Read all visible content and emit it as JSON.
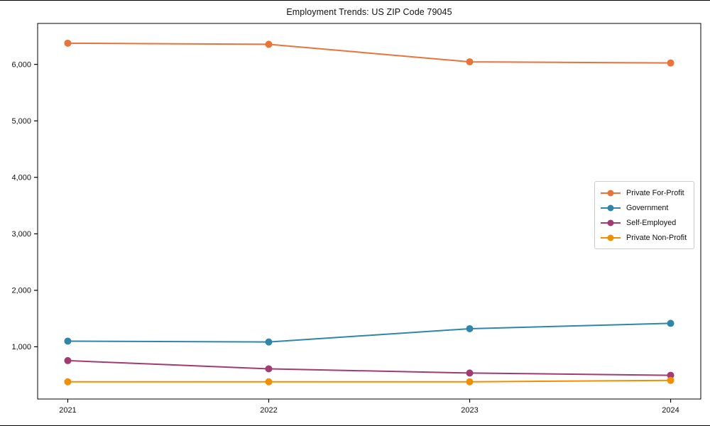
{
  "chart_data": {
    "type": "line",
    "title": "Employment Trends: US ZIP Code 79045",
    "categories": [
      "2021",
      "2022",
      "2023",
      "2024"
    ],
    "series": [
      {
        "name": "Private For-Profit",
        "color": "#E8743B",
        "values": [
          6375,
          6355,
          6045,
          6025
        ]
      },
      {
        "name": "Government",
        "color": "#2E86AB",
        "values": [
          1100,
          1085,
          1320,
          1415
        ]
      },
      {
        "name": "Self-Employed",
        "color": "#A23B72",
        "values": [
          755,
          610,
          535,
          495
        ]
      },
      {
        "name": "Private Non-Profit",
        "color": "#F18F01",
        "values": [
          380,
          380,
          380,
          405
        ]
      }
    ],
    "xlabel": "",
    "ylabel": "",
    "ylim": [
      75,
      6725
    ],
    "y_ticks": [
      1000,
      2000,
      3000,
      4000,
      5000,
      6000
    ],
    "y_tick_labels": [
      "1,000",
      "2,000",
      "3,000",
      "4,000",
      "5,000",
      "6,000"
    ],
    "grid": false,
    "legend_position": "center-right",
    "marker": "circle",
    "axis_color": "#000000",
    "background": "#ffffff"
  }
}
